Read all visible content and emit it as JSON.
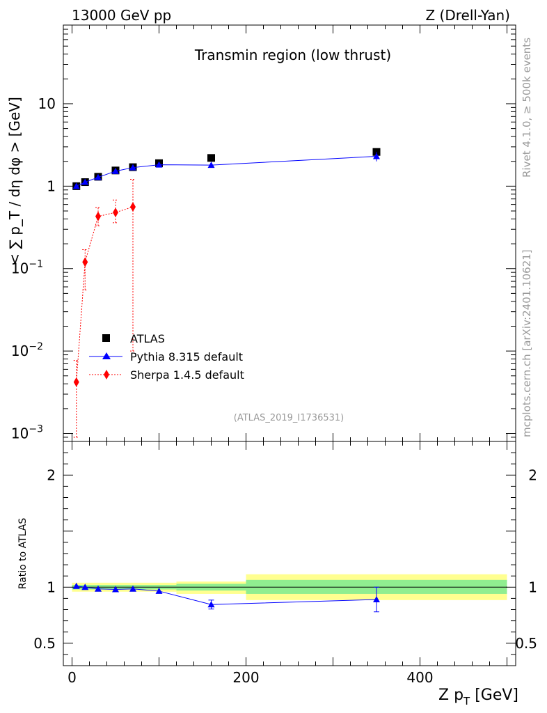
{
  "header": {
    "left": "13000 GeV pp",
    "right": "Z (Drell-Yan)"
  },
  "side": {
    "rivet": "Rivet 4.1.0, ≥ 500k events",
    "site": "mcplots.cern.ch [arXiv:2401.10621]"
  },
  "chart_data": {
    "type": "scatter",
    "title": "Transmin region (low thrust)",
    "analysis_id": "(ATLAS_2019_I1736531)",
    "xlabel": "Z p_T [GeV]",
    "ylabel_top": "< ∑ p_T / dη dφ > [GeV]",
    "ylabel_ratio": "Ratio to ATLAS",
    "xlim": [
      -10,
      510
    ],
    "ylim_top": [
      0.0008,
      90
    ],
    "ylim_ratio": [
      0.3,
      2.3
    ],
    "xticks": [
      0,
      200,
      400
    ],
    "xtick_labels": [
      "0",
      "200",
      "400"
    ],
    "yticks_top": [
      {
        "value": 0.001,
        "base": "10",
        "exp": "−3"
      },
      {
        "value": 0.01,
        "base": "10",
        "exp": "−2"
      },
      {
        "value": 0.1,
        "base": "10",
        "exp": "−1"
      },
      {
        "value": 1,
        "base": "1",
        "exp": ""
      },
      {
        "value": 10,
        "base": "10",
        "exp": ""
      }
    ],
    "yticks_ratio": [
      {
        "value": 0.5,
        "label": "0.5"
      },
      {
        "value": 1,
        "label": "1"
      },
      {
        "value": 2,
        "label": "2"
      }
    ],
    "legend": [
      "ATLAS",
      "Pythia 8.315 default",
      "Sherpa 1.4.5 default"
    ],
    "colors": {
      "atlas": "#000000",
      "pythia": "#0000ff",
      "sherpa": "#ff0000",
      "band_stat": "#90ee90",
      "band_total": "#ffff90"
    },
    "series": [
      {
        "name": "ATLAS",
        "bins": [
          [
            0,
            10
          ],
          [
            10,
            20
          ],
          [
            20,
            40
          ],
          [
            40,
            60
          ],
          [
            60,
            80
          ],
          [
            80,
            120
          ],
          [
            120,
            200
          ],
          [
            200,
            500
          ]
        ],
        "x": [
          5,
          15,
          30,
          50,
          70,
          100,
          160,
          350
        ],
        "y": [
          1.0,
          1.12,
          1.3,
          1.55,
          1.7,
          1.9,
          2.2,
          2.6
        ]
      },
      {
        "name": "Pythia 8.315 default",
        "x": [
          5,
          15,
          30,
          50,
          70,
          100,
          160,
          350
        ],
        "y": [
          1.0,
          1.12,
          1.28,
          1.52,
          1.68,
          1.82,
          1.8,
          2.3
        ],
        "yerr": [
          0.02,
          0.02,
          0.02,
          0.03,
          0.03,
          0.04,
          0.07,
          0.3
        ],
        "ratio": [
          1.01,
          1.0,
          0.985,
          0.98,
          0.985,
          0.965,
          0.845,
          0.89
        ],
        "ratio_err": [
          0.01,
          0.01,
          0.01,
          0.01,
          0.01,
          0.02,
          0.04,
          0.11
        ]
      },
      {
        "name": "Sherpa 1.4.5 default",
        "x": [
          5,
          15,
          30,
          50,
          70
        ],
        "y": [
          0.0042,
          0.12,
          0.43,
          0.48,
          0.56
        ],
        "yerr_low": [
          0.0033,
          0.065,
          0.1,
          0.12,
          0.55
        ],
        "yerr_high": [
          0.0035,
          0.05,
          0.12,
          0.2,
          0.65
        ]
      }
    ],
    "ratio_bands": [
      {
        "bin": [
          0,
          10
        ],
        "stat": [
          0.98,
          1.02
        ],
        "total": [
          0.96,
          1.04
        ]
      },
      {
        "bin": [
          10,
          20
        ],
        "stat": [
          0.98,
          1.02
        ],
        "total": [
          0.96,
          1.04
        ]
      },
      {
        "bin": [
          20,
          40
        ],
        "stat": [
          0.98,
          1.02
        ],
        "total": [
          0.96,
          1.04
        ]
      },
      {
        "bin": [
          40,
          60
        ],
        "stat": [
          0.98,
          1.02
        ],
        "total": [
          0.96,
          1.04
        ]
      },
      {
        "bin": [
          60,
          80
        ],
        "stat": [
          0.98,
          1.02
        ],
        "total": [
          0.96,
          1.04
        ]
      },
      {
        "bin": [
          80,
          120
        ],
        "stat": [
          0.98,
          1.02
        ],
        "total": [
          0.96,
          1.04
        ]
      },
      {
        "bin": [
          120,
          200
        ],
        "stat": [
          0.97,
          1.03
        ],
        "total": [
          0.94,
          1.05
        ]
      },
      {
        "bin": [
          200,
          500
        ],
        "stat": [
          0.94,
          1.065
        ],
        "total": [
          0.885,
          1.115
        ]
      }
    ]
  }
}
